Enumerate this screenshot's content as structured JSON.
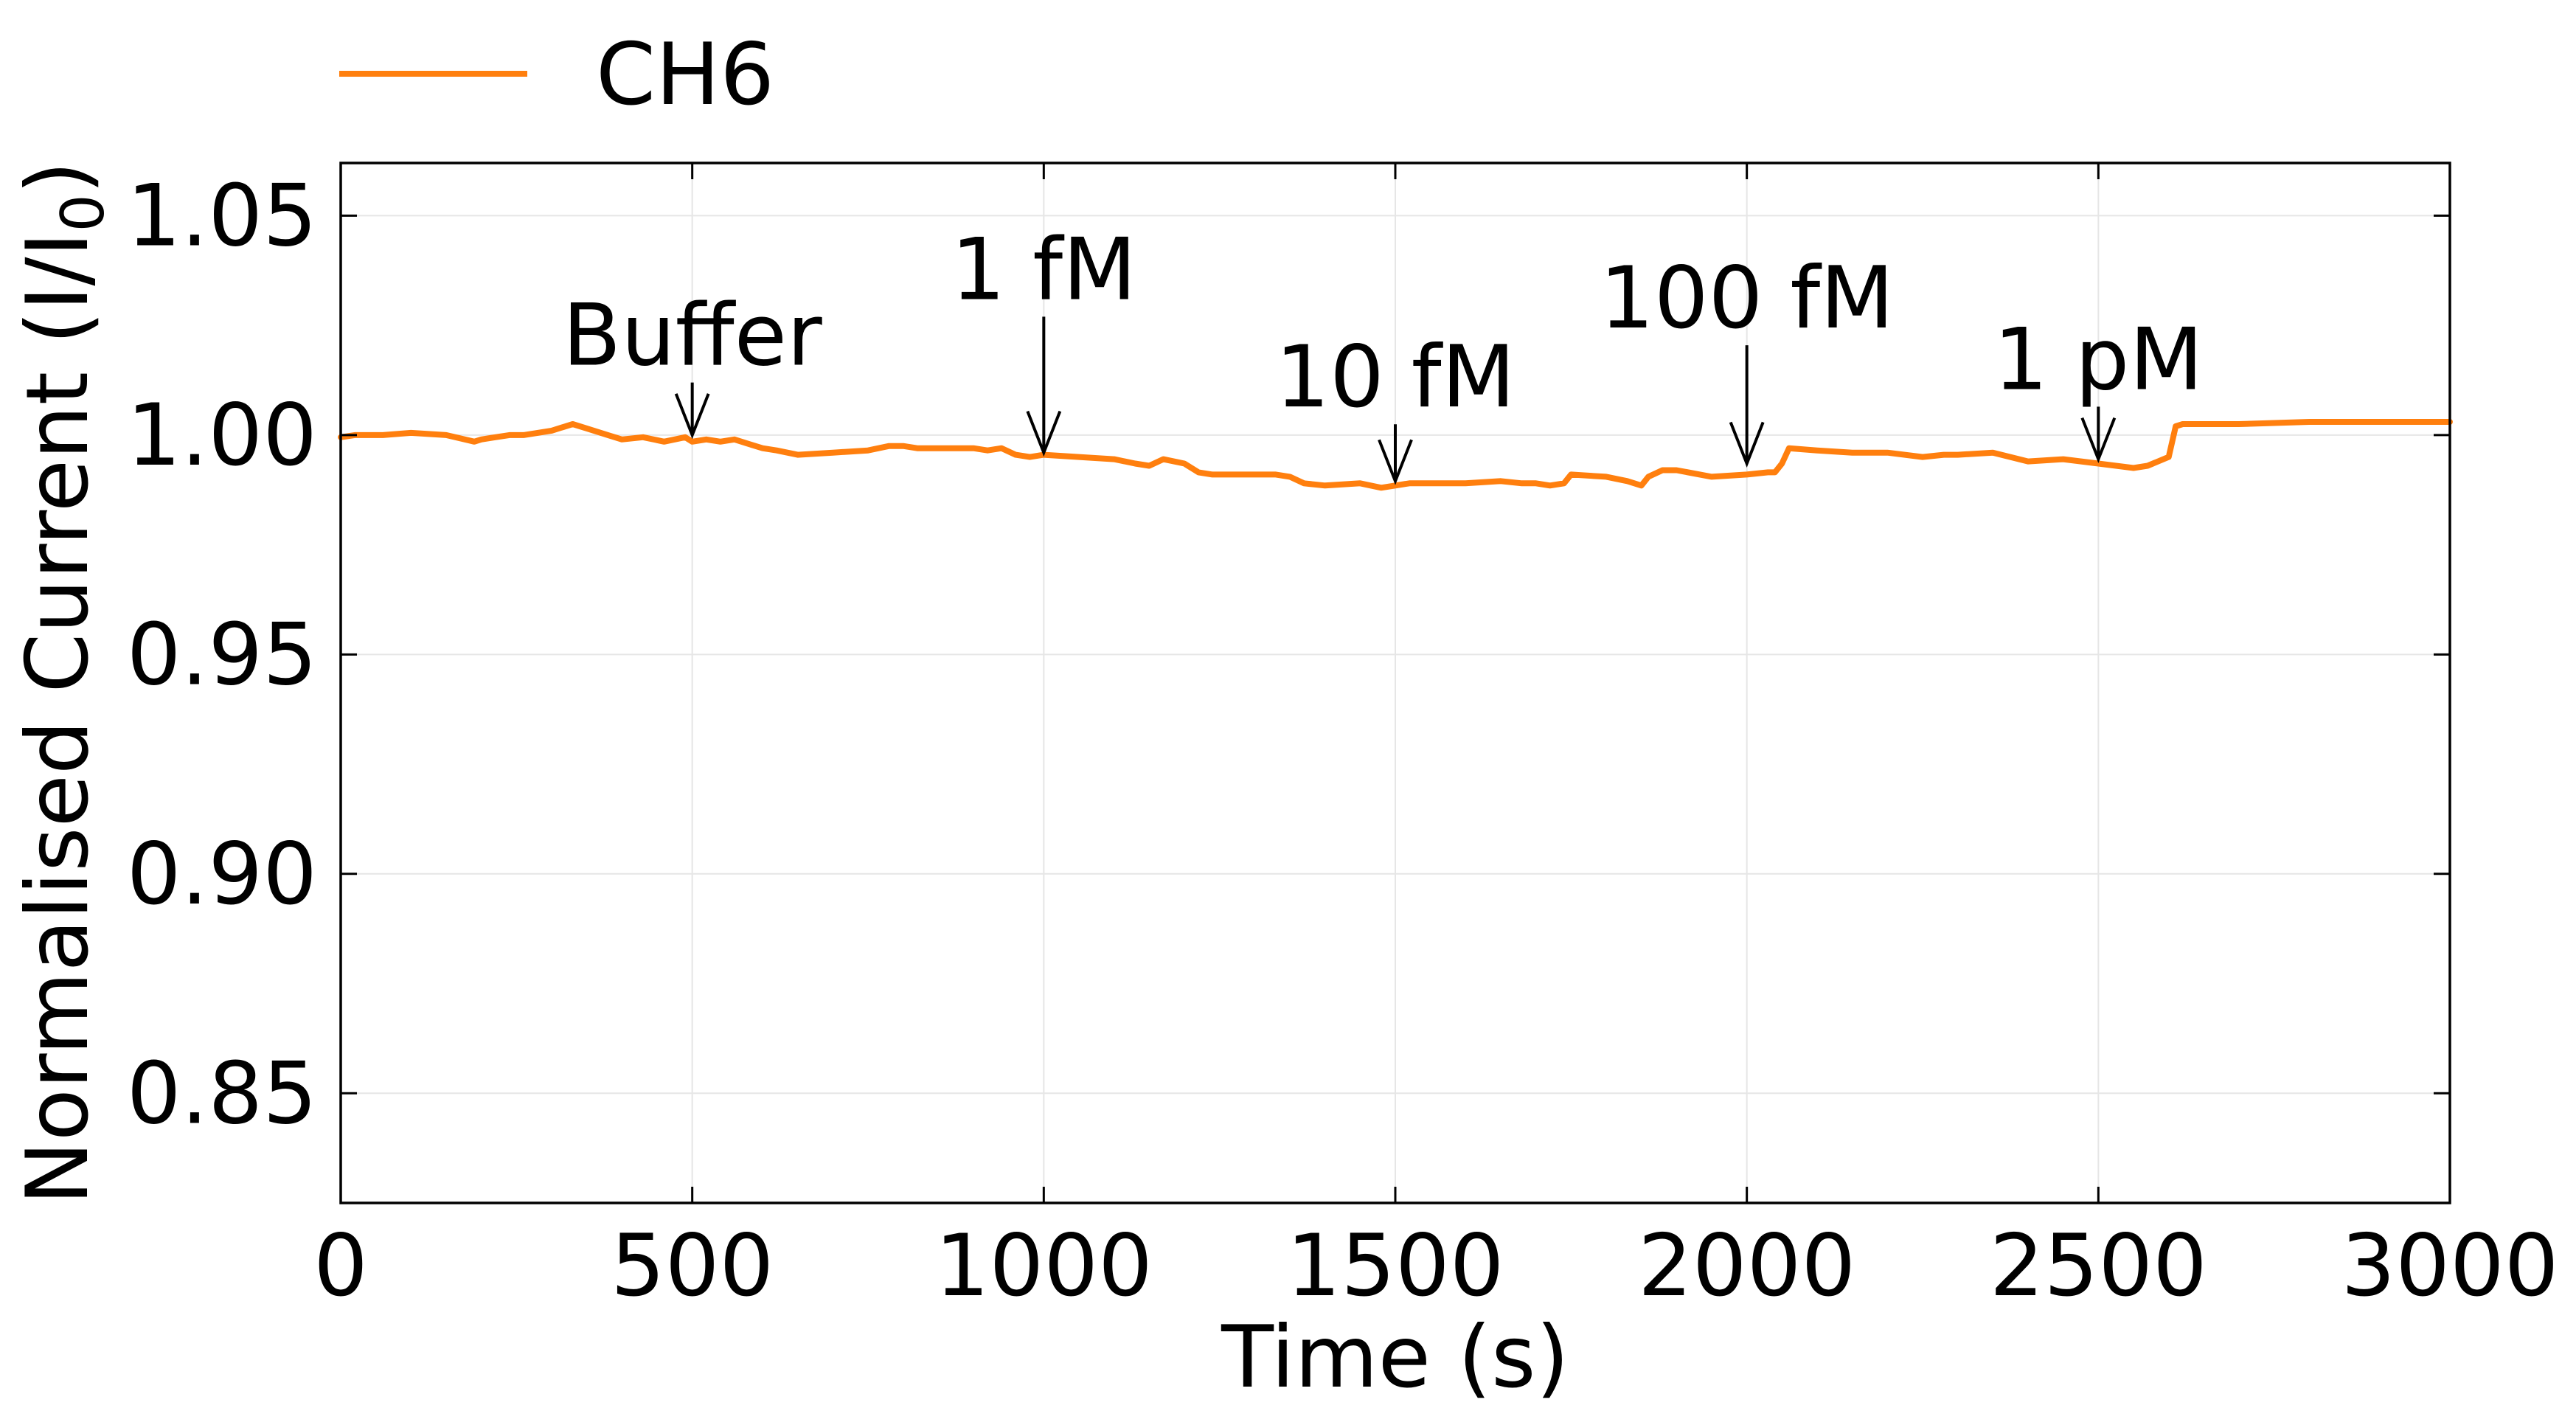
{
  "chart_data": {
    "type": "line",
    "title": "",
    "xlabel": "Time (s)",
    "ylabel": "Normalised Current (I/I",
    "ylabel_subscript": "0",
    "ylabel_suffix": ")",
    "xlim": [
      0,
      3000
    ],
    "ylim": [
      0.825,
      1.062
    ],
    "xticks": [
      0,
      500,
      1000,
      1500,
      2000,
      2500,
      3000
    ],
    "xtick_labels": [
      "0",
      "500",
      "1000",
      "1500",
      "2000",
      "2500",
      "3000"
    ],
    "yticks": [
      0.85,
      0.9,
      0.95,
      1.0,
      1.05
    ],
    "ytick_labels": [
      "0.85",
      "0.90",
      "0.95",
      "1.00",
      "1.05"
    ],
    "grid": true,
    "legend_position": "top-left",
    "series": [
      {
        "name": "CH6",
        "color": "#ff7f0e",
        "x": [
          0,
          20,
          60,
          100,
          150,
          190,
          200,
          220,
          240,
          260,
          300,
          330,
          350,
          380,
          400,
          430,
          460,
          490,
          500,
          520,
          540,
          560,
          580,
          600,
          620,
          650,
          700,
          750,
          780,
          800,
          820,
          850,
          900,
          920,
          940,
          960,
          980,
          1000,
          1050,
          1100,
          1130,
          1150,
          1170,
          1200,
          1220,
          1240,
          1300,
          1330,
          1350,
          1370,
          1400,
          1450,
          1480,
          1500,
          1520,
          1600,
          1650,
          1680,
          1700,
          1720,
          1740,
          1750,
          1800,
          1830,
          1850,
          1860,
          1880,
          1900,
          1950,
          2000,
          2030,
          2040,
          2050,
          2060,
          2100,
          2150,
          2200,
          2250,
          2280,
          2300,
          2350,
          2400,
          2450,
          2500,
          2550,
          2570,
          2600,
          2610,
          2620,
          2650,
          2700,
          2800,
          2900,
          3000
        ],
        "y": [
          0.9995,
          1.0,
          1.0,
          1.0005,
          1.0,
          0.9985,
          0.999,
          0.9995,
          1.0,
          1.0,
          1.001,
          1.0025,
          1.0015,
          1.0,
          0.999,
          0.9995,
          0.9985,
          0.9995,
          0.9985,
          0.999,
          0.9985,
          0.999,
          0.998,
          0.997,
          0.9965,
          0.9955,
          0.996,
          0.9965,
          0.9975,
          0.9975,
          0.997,
          0.997,
          0.997,
          0.9965,
          0.997,
          0.9955,
          0.995,
          0.9955,
          0.995,
          0.9945,
          0.9935,
          0.993,
          0.9945,
          0.9935,
          0.9915,
          0.991,
          0.991,
          0.991,
          0.9905,
          0.989,
          0.9885,
          0.989,
          0.988,
          0.9885,
          0.989,
          0.989,
          0.9895,
          0.989,
          0.989,
          0.9885,
          0.989,
          0.991,
          0.9905,
          0.9895,
          0.9885,
          0.9905,
          0.992,
          0.992,
          0.9905,
          0.991,
          0.9915,
          0.9915,
          0.9935,
          0.997,
          0.9965,
          0.996,
          0.996,
          0.995,
          0.9955,
          0.9955,
          0.996,
          0.994,
          0.9945,
          0.9935,
          0.9925,
          0.993,
          0.995,
          1.002,
          1.0025,
          1.0025,
          1.0025,
          1.003,
          1.003,
          1.003
        ]
      }
    ],
    "annotations": [
      {
        "text": "Buffer",
        "x": 500,
        "y_tip": 1.0,
        "y_label": 1.016
      },
      {
        "text": "1 fM",
        "x": 1000,
        "y_tip": 0.996,
        "y_label": 1.031
      },
      {
        "text": "10 fM",
        "x": 1500,
        "y_tip": 0.9895,
        "y_label": 1.0065
      },
      {
        "text": "100 fM",
        "x": 2000,
        "y_tip": 0.9935,
        "y_label": 1.0245
      },
      {
        "text": "1 pM",
        "x": 2500,
        "y_tip": 0.9945,
        "y_label": 1.0105
      }
    ]
  }
}
